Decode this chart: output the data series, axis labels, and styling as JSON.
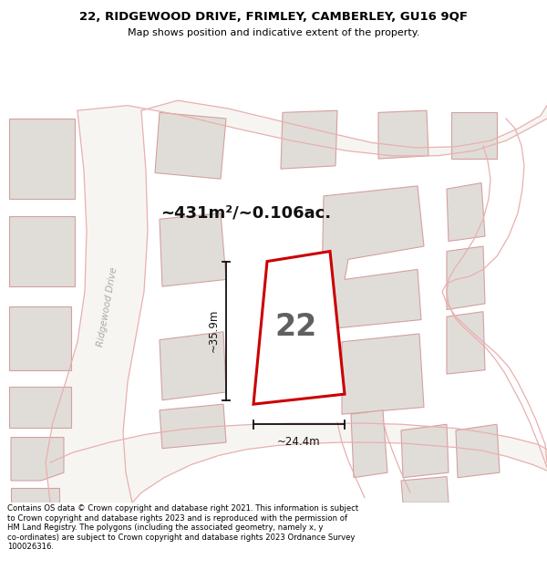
{
  "title_line1": "22, RIDGEWOOD DRIVE, FRIMLEY, CAMBERLEY, GU16 9QF",
  "title_line2": "Map shows position and indicative extent of the property.",
  "area_text": "~431m²/~0.106ac.",
  "property_number": "22",
  "dim_width": "~24.4m",
  "dim_height": "~35.9m",
  "road_label": "Ridgewood Drive",
  "footer_text": "Contains OS data © Crown copyright and database right 2021. This information is subject to Crown copyright and database rights 2023 and is reproduced with the permission of HM Land Registry. The polygons (including the associated geometry, namely x, y co-ordinates) are subject to Crown copyright and database rights 2023 Ordnance Survey 100026316.",
  "map_bg": "#f7f5f2",
  "plot_fill": "#ffffff",
  "plot_edge": "#cc0000",
  "other_fill": "#e0ddd8",
  "other_edge": "#d4a0a0",
  "road_edge": "#e8b0b0",
  "road_fill": "#f7f5f2",
  "title_bg": "#ffffff",
  "footer_bg": "#ffffff",
  "dim_line_color": "#111111",
  "road_label_color": "#aaaaaa",
  "number_color": "#444444"
}
